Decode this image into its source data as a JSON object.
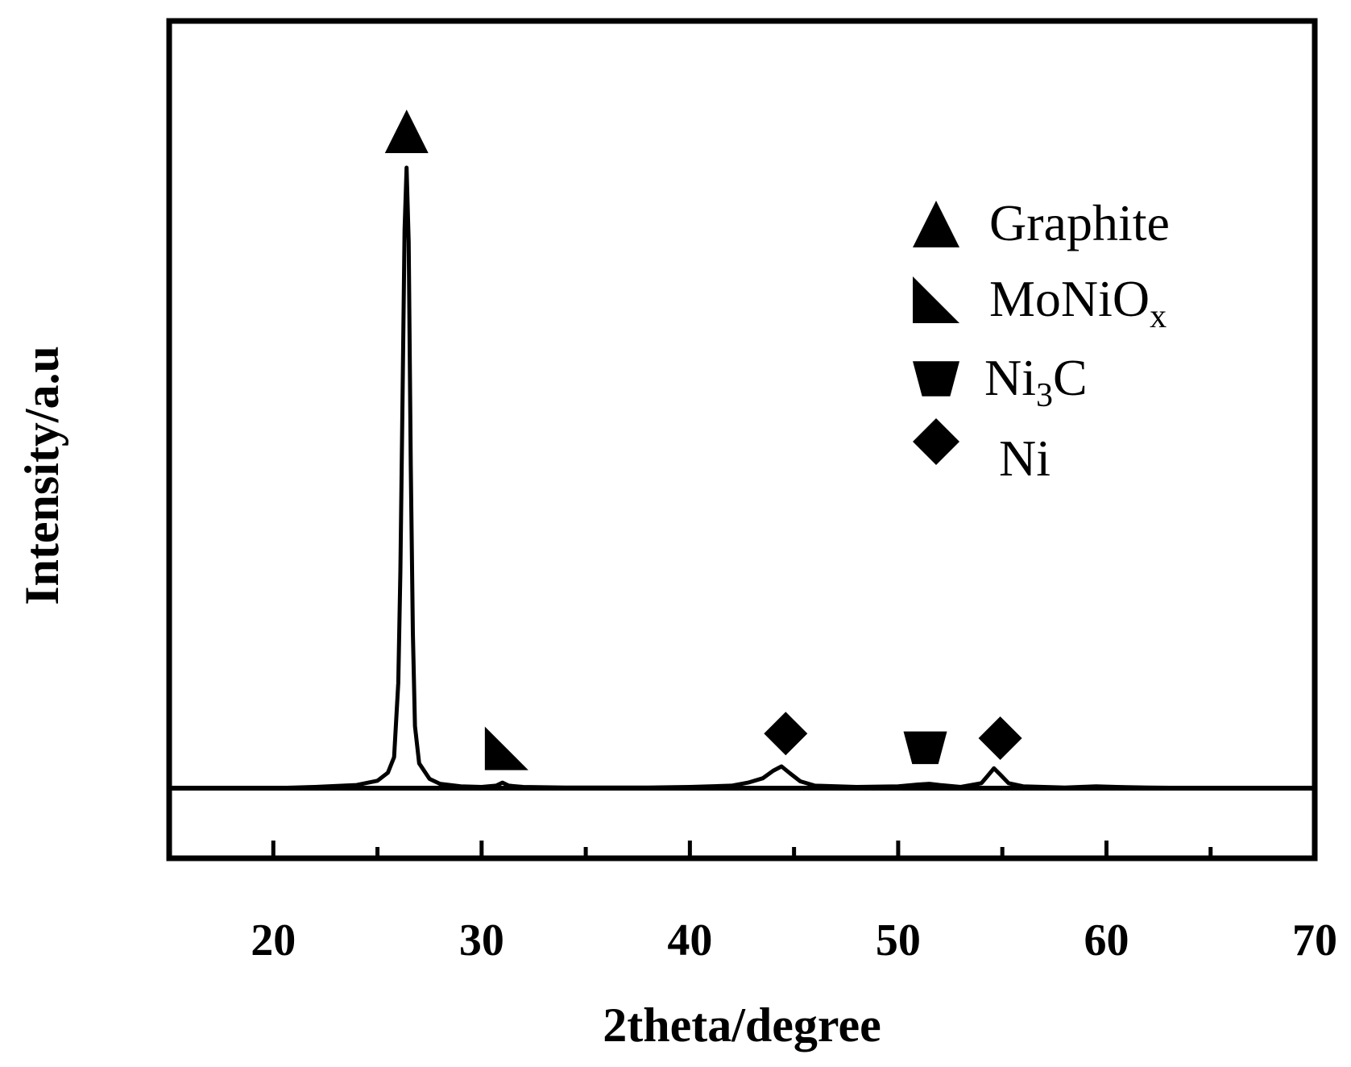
{
  "chart_data": {
    "type": "line",
    "xlabel": "2theta/degree",
    "ylabel": "Intensity/a.u",
    "xlim": [
      15,
      70
    ],
    "xticks": [
      20,
      30,
      40,
      50,
      60,
      70
    ],
    "y_axis_ticks_visible": false,
    "grid": false,
    "legend_position": "top-right",
    "series": [
      {
        "x": [
          15,
          18,
          20,
          22,
          24,
          25,
          25.5,
          25.8,
          26.0,
          26.1,
          26.2,
          26.3,
          26.4,
          26.5,
          26.6,
          26.7,
          26.8,
          27.0,
          27.5,
          28,
          29,
          30,
          30.7,
          31.0,
          31.3,
          32,
          34,
          36,
          38,
          40,
          42,
          42.8,
          43.5,
          44.0,
          44.4,
          44.8,
          45.3,
          46,
          48,
          50,
          51.0,
          51.5,
          52.0,
          53,
          54.0,
          54.3,
          54.6,
          54.9,
          55.3,
          56,
          58,
          59.5,
          60.5,
          62,
          65,
          70
        ],
        "y": [
          0,
          0,
          0,
          0.2,
          0.5,
          1.2,
          2.5,
          5,
          17,
          35,
          62,
          90,
          100,
          88,
          52,
          25,
          10,
          4,
          1.5,
          0.7,
          0.3,
          0.2,
          0.4,
          0.9,
          0.4,
          0.2,
          0.1,
          0.1,
          0.1,
          0.2,
          0.4,
          0.9,
          1.6,
          2.8,
          3.5,
          2.4,
          1.1,
          0.4,
          0.2,
          0.3,
          0.6,
          0.7,
          0.5,
          0.2,
          0.8,
          2.0,
          3.2,
          2.2,
          0.8,
          0.3,
          0.1,
          0.3,
          0.2,
          0.1,
          0,
          0
        ]
      }
    ],
    "peak_markers": [
      {
        "phase": "Graphite",
        "marker": "triangle-up",
        "x": 26.4
      },
      {
        "phase": "MoNiOx",
        "marker": "right-triangle",
        "x": 31.2
      },
      {
        "phase": "Ni",
        "marker": "diamond",
        "x": 44.6
      },
      {
        "phase": "Ni3C",
        "marker": "trapezoid-down",
        "x": 51.3
      },
      {
        "phase": "Ni",
        "marker": "diamond",
        "x": 54.9
      }
    ],
    "legend": [
      {
        "marker": "triangle-up",
        "label": "Graphite",
        "subscript": ""
      },
      {
        "marker": "right-triangle",
        "label": "MoNiO",
        "subscript": "x"
      },
      {
        "marker": "trapezoid-down",
        "label": "Ni",
        "subscript": "3",
        "suffix": "C"
      },
      {
        "marker": "diamond",
        "label": "Ni",
        "subscript": ""
      }
    ]
  }
}
